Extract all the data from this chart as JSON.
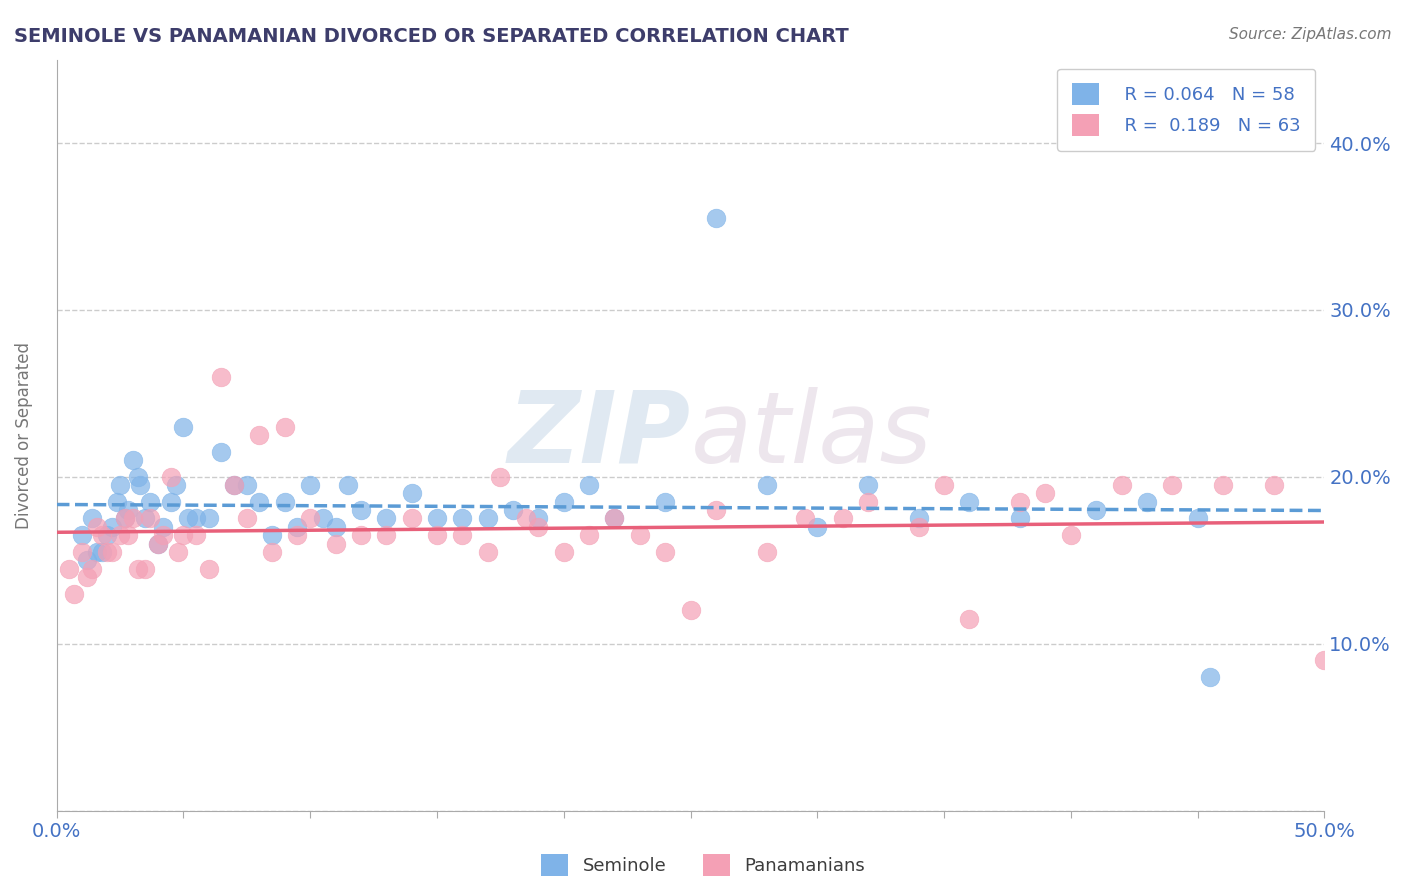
{
  "title": "SEMINOLE VS PANAMANIAN DIVORCED OR SEPARATED CORRELATION CHART",
  "source_text": "Source: ZipAtlas.com",
  "ylabel": "Divorced or Separated",
  "xlim": [
    0.0,
    0.5
  ],
  "ylim": [
    0.0,
    0.45
  ],
  "xtick_pos": [
    0.0,
    0.05,
    0.1,
    0.15,
    0.2,
    0.25,
    0.3,
    0.35,
    0.4,
    0.45,
    0.5
  ],
  "xtick_labels": [
    "0.0%",
    "",
    "",
    "",
    "",
    "",
    "",
    "",
    "",
    "",
    "50.0%"
  ],
  "ytick_pos": [
    0.0,
    0.1,
    0.2,
    0.3,
    0.4
  ],
  "ytick_labels": [
    "",
    "10.0%",
    "20.0%",
    "30.0%",
    "40.0%"
  ],
  "grid_color": "#cccccc",
  "background_color": "#ffffff",
  "watermark_zip": "ZIP",
  "watermark_atlas": "atlas",
  "seminole_color": "#7fb3e8",
  "panamanian_color": "#f4a0b5",
  "seminole_line_color": "#5b9bd5",
  "panamanian_line_color": "#e8607a",
  "legend_r1": "R = 0.064",
  "legend_n1": "N = 58",
  "legend_r2": "R =  0.189",
  "legend_n2": "N = 63",
  "seminole_x": [
    0.01,
    0.012,
    0.014,
    0.016,
    0.018,
    0.02,
    0.022,
    0.024,
    0.025,
    0.027,
    0.028,
    0.03,
    0.032,
    0.033,
    0.035,
    0.037,
    0.04,
    0.042,
    0.045,
    0.047,
    0.05,
    0.052,
    0.055,
    0.06,
    0.065,
    0.07,
    0.075,
    0.08,
    0.085,
    0.09,
    0.095,
    0.1,
    0.105,
    0.11,
    0.115,
    0.12,
    0.13,
    0.14,
    0.15,
    0.16,
    0.17,
    0.18,
    0.19,
    0.2,
    0.21,
    0.22,
    0.24,
    0.26,
    0.28,
    0.3,
    0.32,
    0.34,
    0.36,
    0.38,
    0.41,
    0.43,
    0.45,
    0.455
  ],
  "seminole_y": [
    0.165,
    0.15,
    0.175,
    0.155,
    0.155,
    0.165,
    0.17,
    0.185,
    0.195,
    0.175,
    0.18,
    0.21,
    0.2,
    0.195,
    0.175,
    0.185,
    0.16,
    0.17,
    0.185,
    0.195,
    0.23,
    0.175,
    0.175,
    0.175,
    0.215,
    0.195,
    0.195,
    0.185,
    0.165,
    0.185,
    0.17,
    0.195,
    0.175,
    0.17,
    0.195,
    0.18,
    0.175,
    0.19,
    0.175,
    0.175,
    0.175,
    0.18,
    0.175,
    0.185,
    0.195,
    0.175,
    0.185,
    0.355,
    0.195,
    0.17,
    0.195,
    0.175,
    0.185,
    0.175,
    0.18,
    0.185,
    0.175,
    0.08
  ],
  "panamanian_x": [
    0.005,
    0.007,
    0.01,
    0.012,
    0.014,
    0.016,
    0.018,
    0.02,
    0.022,
    0.025,
    0.027,
    0.028,
    0.03,
    0.032,
    0.035,
    0.037,
    0.04,
    0.042,
    0.045,
    0.048,
    0.05,
    0.055,
    0.06,
    0.065,
    0.07,
    0.075,
    0.08,
    0.085,
    0.09,
    0.095,
    0.1,
    0.11,
    0.12,
    0.13,
    0.14,
    0.15,
    0.16,
    0.17,
    0.175,
    0.185,
    0.19,
    0.2,
    0.21,
    0.22,
    0.23,
    0.24,
    0.25,
    0.26,
    0.28,
    0.295,
    0.31,
    0.32,
    0.34,
    0.36,
    0.38,
    0.39,
    0.4,
    0.42,
    0.44,
    0.46,
    0.48,
    0.5,
    0.35
  ],
  "panamanian_y": [
    0.145,
    0.13,
    0.155,
    0.14,
    0.145,
    0.17,
    0.165,
    0.155,
    0.155,
    0.165,
    0.175,
    0.165,
    0.175,
    0.145,
    0.145,
    0.175,
    0.16,
    0.165,
    0.2,
    0.155,
    0.165,
    0.165,
    0.145,
    0.26,
    0.195,
    0.175,
    0.225,
    0.155,
    0.23,
    0.165,
    0.175,
    0.16,
    0.165,
    0.165,
    0.175,
    0.165,
    0.165,
    0.155,
    0.2,
    0.175,
    0.17,
    0.155,
    0.165,
    0.175,
    0.165,
    0.155,
    0.12,
    0.18,
    0.155,
    0.175,
    0.175,
    0.185,
    0.17,
    0.115,
    0.185,
    0.19,
    0.165,
    0.195,
    0.195,
    0.195,
    0.195,
    0.09,
    0.195
  ]
}
